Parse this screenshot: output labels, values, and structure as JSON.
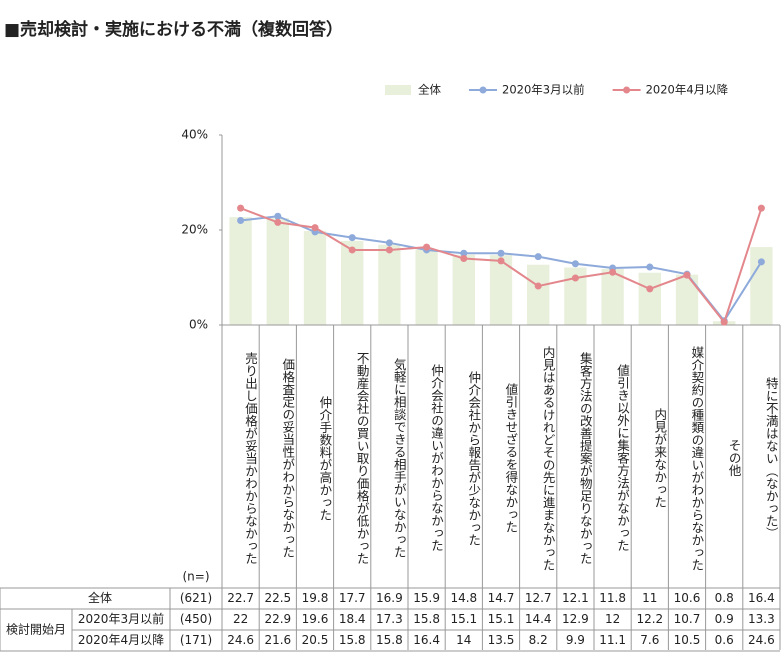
{
  "chart_data": {
    "type": "combo",
    "title": "■売却検討・実施における不満（複数回答）",
    "categories": [
      "売り出し価格が妥当かわからなかった",
      "価格査定の妥当性がわからなかった",
      "仲介手数料が高かった",
      "不動産会社の買い取り価格が低かった",
      "気軽に相談できる相手がいなかった",
      "仲介会社の違いがわからなかった",
      "仲介会社から報告が少なかった",
      "値引きせざるを得なかった",
      "内見はあるけれどその先に進まなかった",
      "集客方法の改善提案が物足りなかった",
      "値引き以外に集客方法がなかった",
      "内見が来なかった",
      "媒介契約の種類の違いがわからなかった",
      "その他",
      "特に不満はない（なかった）"
    ],
    "series": [
      {
        "name": "全体",
        "kind": "bar",
        "color": "#e8efdb",
        "values": [
          22.7,
          22.5,
          19.8,
          17.7,
          16.9,
          15.9,
          14.8,
          14.7,
          12.7,
          12.1,
          11.8,
          11.0,
          10.6,
          0.8,
          16.4
        ]
      },
      {
        "name": "2020年3月以前",
        "kind": "line",
        "color": "#8eaadb",
        "values": [
          22.0,
          22.9,
          19.6,
          18.4,
          17.3,
          15.8,
          15.1,
          15.1,
          14.4,
          12.9,
          12.0,
          12.2,
          10.7,
          0.9,
          13.3
        ]
      },
      {
        "name": "2020年4月以降",
        "kind": "line",
        "color": "#e3878c",
        "values": [
          24.6,
          21.6,
          20.5,
          15.8,
          15.8,
          16.4,
          14.0,
          13.5,
          8.2,
          9.9,
          11.1,
          7.6,
          10.5,
          0.6,
          24.6
        ]
      }
    ],
    "ylim": [
      0,
      40
    ],
    "yticks": [
      {
        "value": 0,
        "label": "0%"
      },
      {
        "value": 20,
        "label": "20%"
      },
      {
        "value": 40,
        "label": "40%"
      }
    ],
    "table": {
      "n_header": "(n=)",
      "group_label": "検討開始月",
      "n": [
        "(621)",
        "(450)",
        "(171)"
      ]
    }
  }
}
